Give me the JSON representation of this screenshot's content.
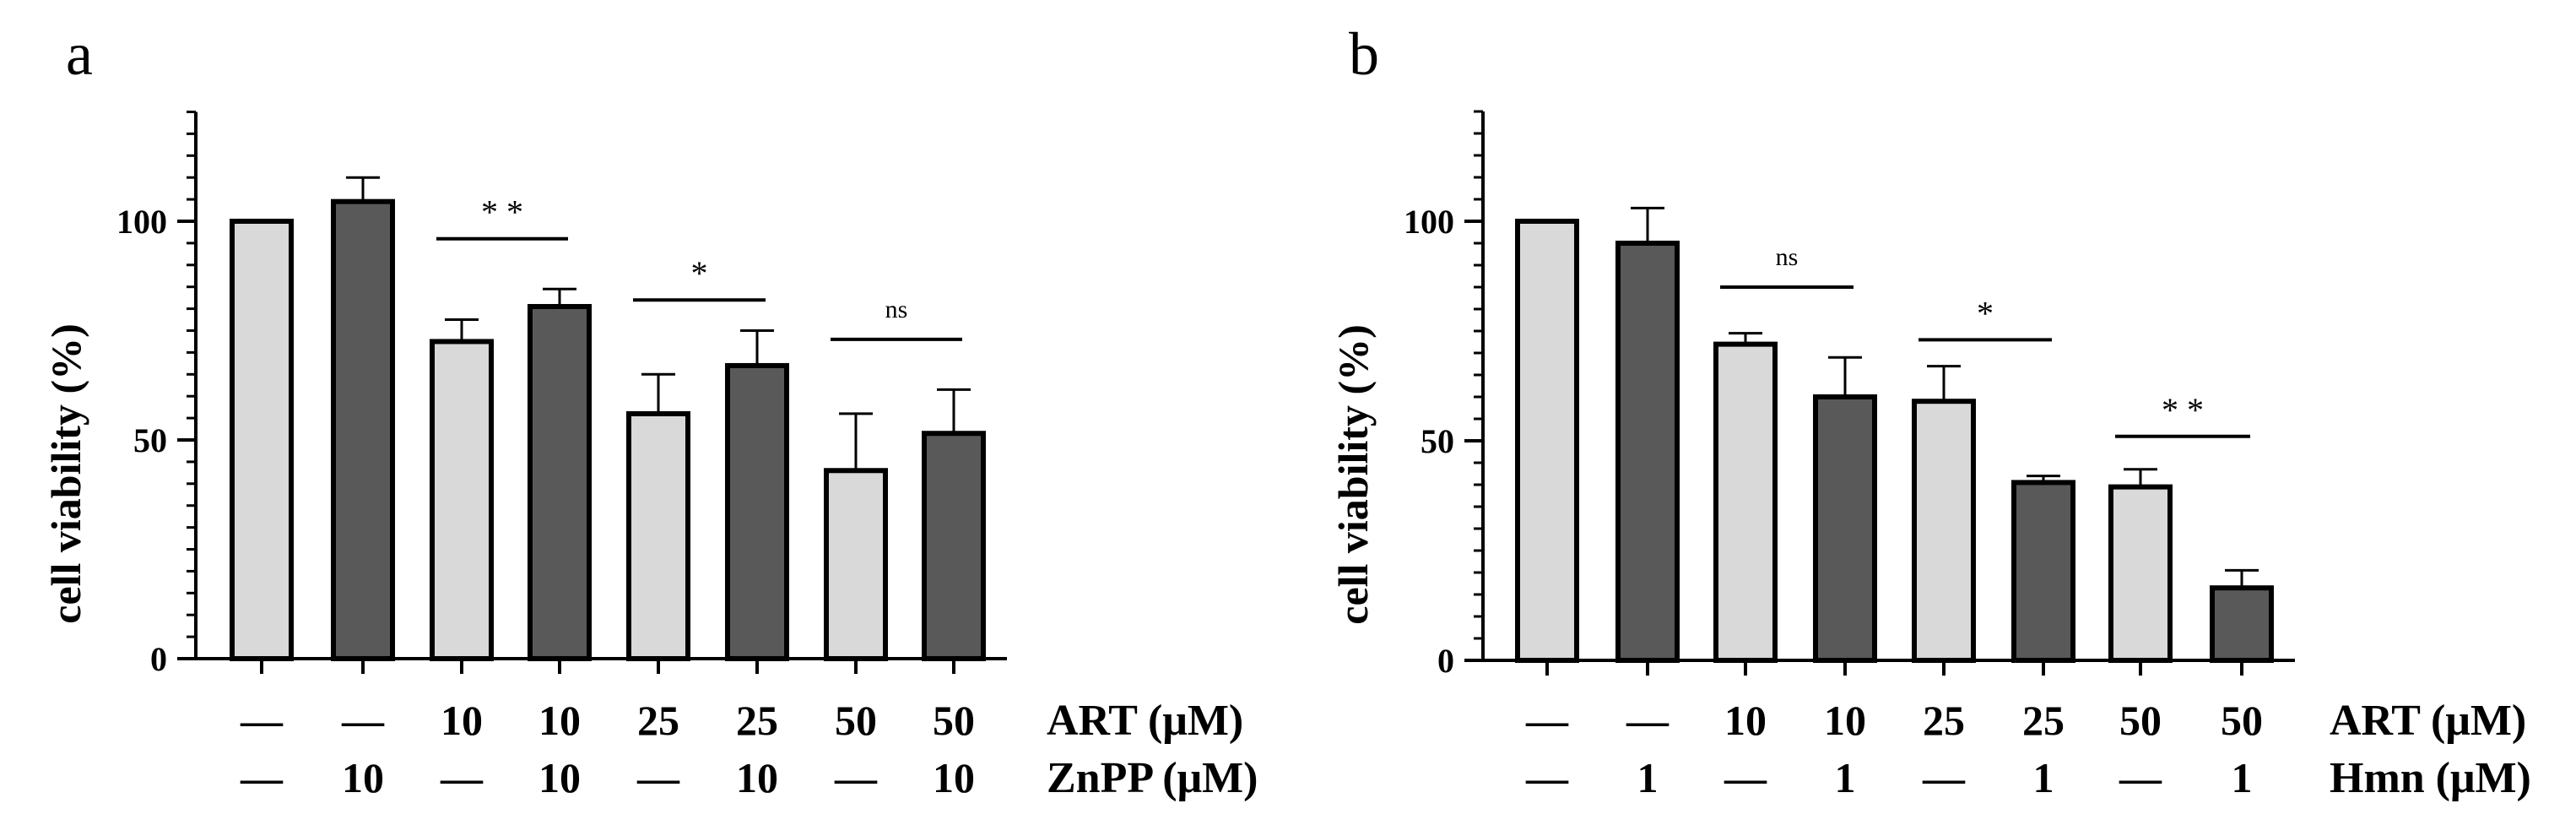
{
  "chart_data": [
    {
      "panel": "a",
      "type": "bar",
      "ylabel": "cell viability (%)",
      "ylim": [
        0,
        125
      ],
      "yticks": [
        0,
        50,
        100
      ],
      "colors": {
        "light": "#d9d9d9",
        "dark": "#595959"
      },
      "bars": [
        {
          "value": 100,
          "error": 0,
          "shade": "light"
        },
        {
          "value": 104.5,
          "error": 5.5,
          "shade": "dark"
        },
        {
          "value": 72.5,
          "error": 5,
          "shade": "light"
        },
        {
          "value": 80.5,
          "error": 4,
          "shade": "dark"
        },
        {
          "value": 56,
          "error": 9,
          "shade": "light"
        },
        {
          "value": 67,
          "error": 8,
          "shade": "dark"
        },
        {
          "value": 43,
          "error": 13,
          "shade": "light"
        },
        {
          "value": 51.5,
          "error": 10,
          "shade": "dark"
        }
      ],
      "condition_rows": [
        {
          "label": "ART (μM)",
          "values": [
            "—",
            "—",
            "10",
            "10",
            "25",
            "25",
            "50",
            "50"
          ]
        },
        {
          "label": "ZnPP (μM)",
          "values": [
            "—",
            "10",
            "—",
            "10",
            "—",
            "10",
            "—",
            "10"
          ]
        }
      ],
      "significance": [
        {
          "bars": [
            2,
            3
          ],
          "label": "* *",
          "y": 96
        },
        {
          "bars": [
            4,
            5
          ],
          "label": "*",
          "y": 82
        },
        {
          "bars": [
            6,
            7
          ],
          "label": "ns",
          "y": 73
        }
      ]
    },
    {
      "panel": "b",
      "type": "bar",
      "ylabel": "cell viability (%)",
      "ylim": [
        0,
        125
      ],
      "yticks": [
        0,
        50,
        100
      ],
      "colors": {
        "light": "#d9d9d9",
        "dark": "#595959"
      },
      "bars": [
        {
          "value": 100,
          "error": 0,
          "shade": "light"
        },
        {
          "value": 95,
          "error": 8,
          "shade": "dark"
        },
        {
          "value": 72,
          "error": 2.5,
          "shade": "light"
        },
        {
          "value": 60,
          "error": 9,
          "shade": "dark"
        },
        {
          "value": 59,
          "error": 8,
          "shade": "light"
        },
        {
          "value": 40.5,
          "error": 1.5,
          "shade": "dark"
        },
        {
          "value": 39.5,
          "error": 4,
          "shade": "light"
        },
        {
          "value": 16.5,
          "error": 4,
          "shade": "dark"
        }
      ],
      "condition_rows": [
        {
          "label": "ART (μM)",
          "values": [
            "—",
            "—",
            "10",
            "10",
            "25",
            "25",
            "50",
            "50"
          ]
        },
        {
          "label": "Hmn (μM)",
          "values": [
            "—",
            "1",
            "—",
            "1",
            "—",
            "1",
            "—",
            "1"
          ]
        }
      ],
      "significance": [
        {
          "bars": [
            2,
            3
          ],
          "label": "ns",
          "y": 85
        },
        {
          "bars": [
            4,
            5
          ],
          "label": "*",
          "y": 73
        },
        {
          "bars": [
            6,
            7
          ],
          "label": "* *",
          "y": 51
        }
      ]
    }
  ]
}
